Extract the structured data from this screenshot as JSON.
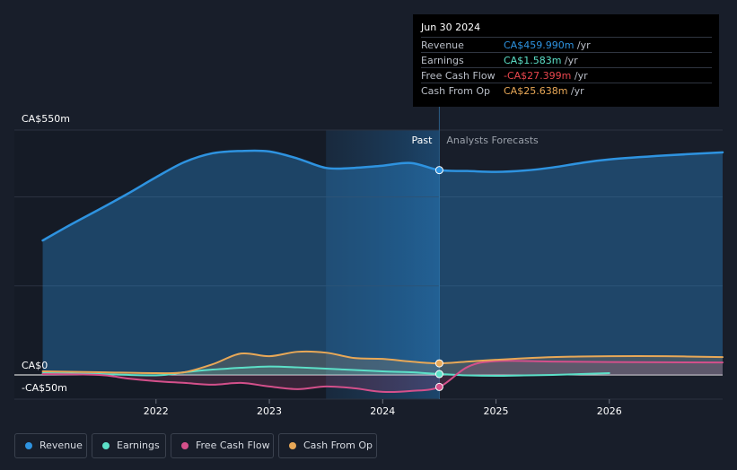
{
  "chart_data": {
    "type": "line",
    "y_labels": [
      "CA$550m",
      "CA$0",
      "-CA$50m"
    ],
    "ylim": [
      -50,
      550
    ],
    "x_ticks": [
      {
        "label": "2022",
        "x": 2022.0
      },
      {
        "label": "2023",
        "x": 2023.0
      },
      {
        "label": "2024",
        "x": 2024.0
      },
      {
        "label": "2025",
        "x": 2025.0
      },
      {
        "label": "2026",
        "x": 2026.0
      }
    ],
    "xlim": [
      2020.75,
      2027.0
    ],
    "past_region": [
      2023.5,
      2024.5
    ],
    "divider": 2024.5,
    "past_label": "Past",
    "forecast_label": "Analysts Forecasts",
    "series": [
      {
        "name": "Revenue",
        "color": "#2e93e0",
        "points": [
          [
            2021.0,
            302
          ],
          [
            2021.25,
            338
          ],
          [
            2021.5,
            372
          ],
          [
            2021.75,
            407
          ],
          [
            2022.0,
            444
          ],
          [
            2022.25,
            478
          ],
          [
            2022.5,
            498
          ],
          [
            2022.75,
            503
          ],
          [
            2023.0,
            502
          ],
          [
            2023.25,
            486
          ],
          [
            2023.5,
            465
          ],
          [
            2023.75,
            465
          ],
          [
            2024.0,
            470
          ],
          [
            2024.25,
            476
          ],
          [
            2024.5,
            460
          ],
          [
            2024.75,
            458
          ],
          [
            2025.0,
            456
          ],
          [
            2025.25,
            459
          ],
          [
            2025.5,
            466
          ],
          [
            2025.75,
            476
          ],
          [
            2026.0,
            484
          ],
          [
            2026.5,
            493
          ],
          [
            2027.0,
            500
          ]
        ]
      },
      {
        "name": "Earnings",
        "color": "#5ce0c8",
        "points": [
          [
            2021.0,
            4
          ],
          [
            2021.5,
            2
          ],
          [
            2022.0,
            -1
          ],
          [
            2022.25,
            6
          ],
          [
            2022.5,
            12
          ],
          [
            2022.75,
            16
          ],
          [
            2023.0,
            19
          ],
          [
            2023.25,
            17
          ],
          [
            2023.5,
            14
          ],
          [
            2023.75,
            11
          ],
          [
            2024.0,
            8
          ],
          [
            2024.25,
            6
          ],
          [
            2024.5,
            2
          ],
          [
            2024.75,
            -1
          ],
          [
            2025.0,
            -2
          ],
          [
            2025.25,
            -1
          ],
          [
            2025.5,
            0
          ],
          [
            2025.75,
            2
          ],
          [
            2026.0,
            4
          ]
        ]
      },
      {
        "name": "Free Cash Flow",
        "color": "#d4508b",
        "points": [
          [
            2021.0,
            2
          ],
          [
            2021.5,
            0
          ],
          [
            2021.75,
            -8
          ],
          [
            2022.0,
            -14
          ],
          [
            2022.25,
            -18
          ],
          [
            2022.5,
            -22
          ],
          [
            2022.75,
            -18
          ],
          [
            2023.0,
            -26
          ],
          [
            2023.25,
            -32
          ],
          [
            2023.5,
            -26
          ],
          [
            2023.75,
            -30
          ],
          [
            2024.0,
            -38
          ],
          [
            2024.25,
            -36
          ],
          [
            2024.5,
            -27
          ],
          [
            2024.75,
            18
          ],
          [
            2025.0,
            31
          ],
          [
            2025.5,
            30
          ],
          [
            2026.0,
            29
          ],
          [
            2027.0,
            28
          ]
        ]
      },
      {
        "name": "Cash From Op",
        "color": "#e8a857",
        "points": [
          [
            2021.0,
            8
          ],
          [
            2021.5,
            6
          ],
          [
            2022.0,
            4
          ],
          [
            2022.25,
            6
          ],
          [
            2022.5,
            24
          ],
          [
            2022.75,
            48
          ],
          [
            2023.0,
            42
          ],
          [
            2023.25,
            52
          ],
          [
            2023.5,
            50
          ],
          [
            2023.75,
            38
          ],
          [
            2024.0,
            36
          ],
          [
            2024.25,
            30
          ],
          [
            2024.5,
            26
          ],
          [
            2024.75,
            30
          ],
          [
            2025.0,
            34
          ],
          [
            2025.5,
            40
          ],
          [
            2026.0,
            42
          ],
          [
            2026.5,
            42
          ],
          [
            2027.0,
            40
          ]
        ]
      }
    ],
    "markers": [
      {
        "series": "Revenue",
        "x": 2024.5,
        "y": 460
      },
      {
        "series": "Cash From Op",
        "x": 2024.5,
        "y": 26
      },
      {
        "series": "Earnings",
        "x": 2024.5,
        "y": 2
      },
      {
        "series": "Free Cash Flow",
        "x": 2024.5,
        "y": -27
      }
    ]
  },
  "tooltip": {
    "date": "Jun 30 2024",
    "unit": "/yr",
    "rows": [
      {
        "label": "Revenue",
        "value": "CA$459.990m",
        "color": "#2e93e0"
      },
      {
        "label": "Earnings",
        "value": "CA$1.583m",
        "color": "#5ce0c8"
      },
      {
        "label": "Free Cash Flow",
        "value": "-CA$27.399m",
        "color": "#e8464d"
      },
      {
        "label": "Cash From Op",
        "value": "CA$25.638m",
        "color": "#e8a857"
      }
    ]
  },
  "legend": [
    {
      "label": "Revenue",
      "color": "#2e93e0"
    },
    {
      "label": "Earnings",
      "color": "#5ce0c8"
    },
    {
      "label": "Free Cash Flow",
      "color": "#d4508b"
    },
    {
      "label": "Cash From Op",
      "color": "#e8a857"
    }
  ]
}
